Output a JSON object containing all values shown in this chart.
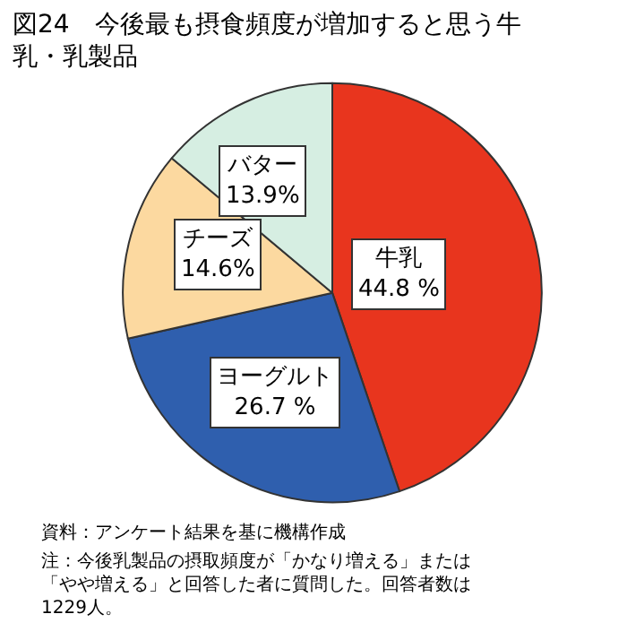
{
  "chart_data": {
    "type": "pie",
    "title": "図24　今後最も摂食頻度が増加すると思う牛乳・乳製品",
    "categories": [
      "牛乳",
      "ヨーグルト",
      "チーズ",
      "バター"
    ],
    "values": [
      44.8,
      26.7,
      14.6,
      13.9
    ],
    "value_labels": [
      "44.8 %",
      "26.7 %",
      "14.6%",
      "13.9%"
    ],
    "colors": [
      "#e8351e",
      "#2f5fae",
      "#fcd9a0",
      "#d6eee2"
    ],
    "legend": false,
    "annotations": [
      "資料：アンケート結果を基に機構作成",
      "注：今後乳製品の摂取頻度が「かなり増える」または「やや増える」と回答した者に質問した。回答者数は1229人。"
    ]
  }
}
